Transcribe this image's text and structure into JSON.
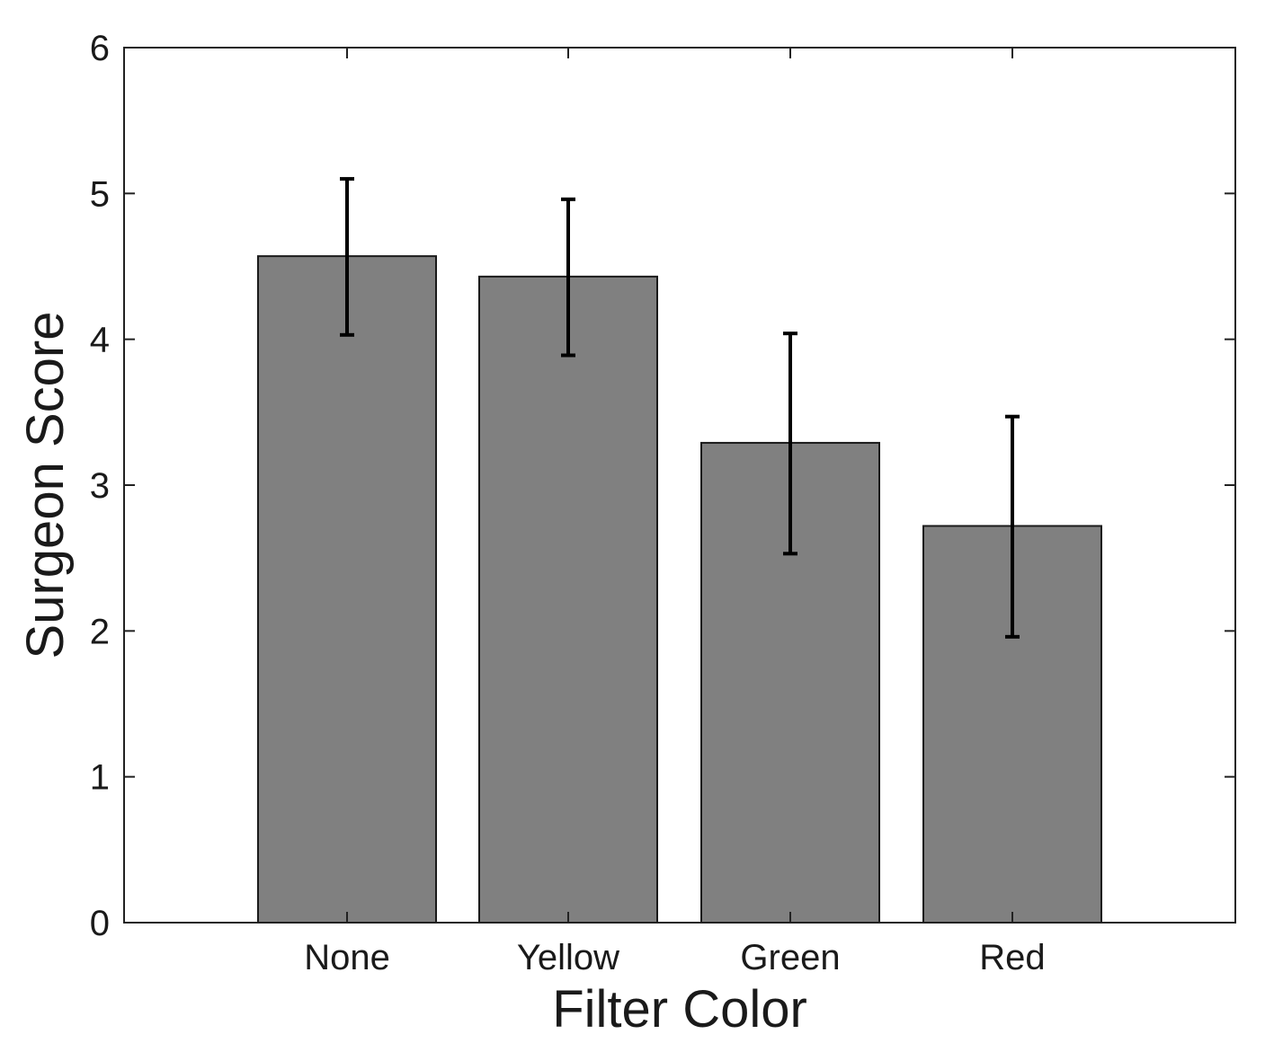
{
  "chart_data": {
    "type": "bar",
    "title": "",
    "xlabel": "Filter Color",
    "ylabel": "Surgeon Score",
    "categories": [
      "None",
      "Yellow",
      "Green",
      "Red"
    ],
    "values": [
      4.57,
      4.43,
      3.29,
      2.72
    ],
    "error_low": [
      4.03,
      3.89,
      2.53,
      1.96
    ],
    "error_high": [
      5.1,
      4.96,
      4.04,
      3.47
    ],
    "ylim": [
      0,
      6
    ],
    "yticks": [
      "0",
      "1",
      "2",
      "3",
      "4",
      "5",
      "6"
    ],
    "grid": false,
    "bar_color": "#808080",
    "error_bar_color": "#000000"
  }
}
